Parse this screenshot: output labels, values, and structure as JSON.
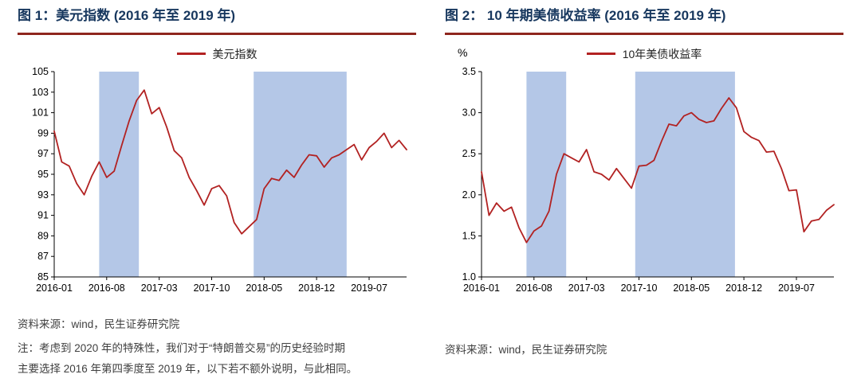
{
  "colors": {
    "line_red": "#b22222",
    "band_blue": "#b4c7e7",
    "title_navy": "#17375e",
    "rule_red": "#8f261e",
    "text_dark": "#3f3f3f"
  },
  "footer": {
    "left": {
      "source": "资料来源：wind，民生证券研究院",
      "note_line1": "注：考虑到 2020 年的特殊性，我们对于“特朗普交易”的历史经验时期",
      "note_line2": "主要选择 2016 年第四季度至 2019 年，以下若不额外说明，与此相同。"
    },
    "right": {
      "source": "资料来源：wind，民生证券研究院"
    }
  },
  "chart_data": [
    {
      "type": "line",
      "name": "dollar-index-chart",
      "title": "图 1：美元指数 (2016 年至 2019 年)",
      "legend": "美元指数",
      "y_unit": "",
      "x_start": "2016-01",
      "x_interval": "monthly",
      "xticks": [
        {
          "label": "2016-01",
          "month": 0
        },
        {
          "label": "2016-08",
          "month": 7
        },
        {
          "label": "2017-03",
          "month": 14
        },
        {
          "label": "2017-10",
          "month": 21
        },
        {
          "label": "2018-05",
          "month": 28
        },
        {
          "label": "2018-12",
          "month": 35
        },
        {
          "label": "2019-07",
          "month": 42
        }
      ],
      "ylim": [
        85,
        105
      ],
      "ystep": 2,
      "ydp": 0,
      "grid": false,
      "legend_position": "top-center",
      "bands": [
        {
          "start": 6,
          "end": 11.3
        },
        {
          "start": 26.6,
          "end": 39
        }
      ],
      "series": [
        {
          "name": "美元指数",
          "color": "#b22222",
          "values": [
            99.2,
            96.2,
            95.8,
            94.1,
            93.0,
            94.8,
            96.2,
            94.7,
            95.3,
            97.8,
            100.2,
            102.2,
            103.2,
            100.9,
            101.5,
            99.6,
            97.3,
            96.6,
            94.7,
            93.4,
            92.0,
            93.6,
            93.9,
            92.9,
            90.3,
            89.2,
            89.9,
            90.6,
            93.6,
            94.6,
            94.4,
            95.4,
            94.7,
            95.9,
            96.9,
            96.8,
            95.7,
            96.6,
            96.9,
            97.4,
            97.9,
            96.4,
            97.6,
            98.2,
            99.0,
            97.6,
            98.3,
            97.4
          ]
        }
      ]
    },
    {
      "type": "line",
      "name": "treasury-yield-chart",
      "title": "图 2： 10 年期美债收益率 (2016 年至 2019 年)",
      "legend": "10年美债收益率",
      "y_unit": "%",
      "x_start": "2016-01",
      "x_interval": "monthly",
      "xticks": [
        {
          "label": "2016-01",
          "month": 0
        },
        {
          "label": "2016-08",
          "month": 7
        },
        {
          "label": "2017-03",
          "month": 14
        },
        {
          "label": "2017-10",
          "month": 21
        },
        {
          "label": "2018-05",
          "month": 28
        },
        {
          "label": "2018-12",
          "month": 35
        },
        {
          "label": "2019-07",
          "month": 42
        }
      ],
      "ylim": [
        1.0,
        3.5
      ],
      "ystep": 0.5,
      "ydp": 1,
      "grid": false,
      "legend_position": "top-center",
      "bands": [
        {
          "start": 6,
          "end": 11.3
        },
        {
          "start": 20.5,
          "end": 33.8
        }
      ],
      "series": [
        {
          "name": "10年美债收益率",
          "color": "#b22222",
          "values": [
            2.28,
            1.75,
            1.9,
            1.8,
            1.85,
            1.6,
            1.42,
            1.56,
            1.62,
            1.8,
            2.25,
            2.5,
            2.45,
            2.4,
            2.55,
            2.28,
            2.25,
            2.18,
            2.32,
            2.2,
            2.08,
            2.35,
            2.36,
            2.42,
            2.65,
            2.86,
            2.84,
            2.96,
            3.0,
            2.92,
            2.88,
            2.9,
            3.05,
            3.18,
            3.06,
            2.77,
            2.7,
            2.66,
            2.52,
            2.53,
            2.32,
            2.05,
            2.06,
            1.55,
            1.68,
            1.7,
            1.81,
            1.88
          ]
        }
      ]
    }
  ]
}
